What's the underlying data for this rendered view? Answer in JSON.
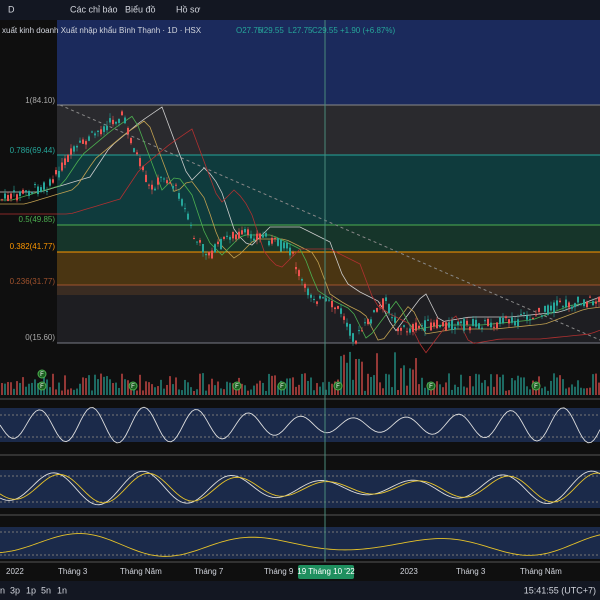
{
  "toolbar": {
    "interval": "D",
    "items": [
      "Các chỉ báo",
      "Biểu đồ",
      "Hồ sơ"
    ]
  },
  "legend": {
    "symbol": "xuất kinh doanh Xuất nhập khẩu Bình Thạnh · 1D · HSX",
    "ohlc": [
      "O27.75",
      "H29.55",
      "L27.75",
      "C29.55"
    ],
    "change": "+1.90 (+6.87%)"
  },
  "fib_levels": [
    "1(84.10)",
    "0.786(69.44)",
    "0.5(49.85)",
    "0.382(41.77)",
    "0.236(31.77)",
    "0(15.60)"
  ],
  "event_markers": [
    "F",
    "F",
    "F",
    "F",
    "F",
    "F",
    "F",
    "F"
  ],
  "time_axis": [
    "2022",
    "Tháng 3",
    "Tháng Năm",
    "Tháng 7",
    "Tháng 9",
    "2023",
    "Tháng 3",
    "Tháng Năm"
  ],
  "crosshair_date": "19 Tháng 10 '22",
  "ranges": [
    "n",
    "3p",
    "1p",
    "5n",
    "1n"
  ],
  "clock": "15:41:55 (UTC+7)"
}
